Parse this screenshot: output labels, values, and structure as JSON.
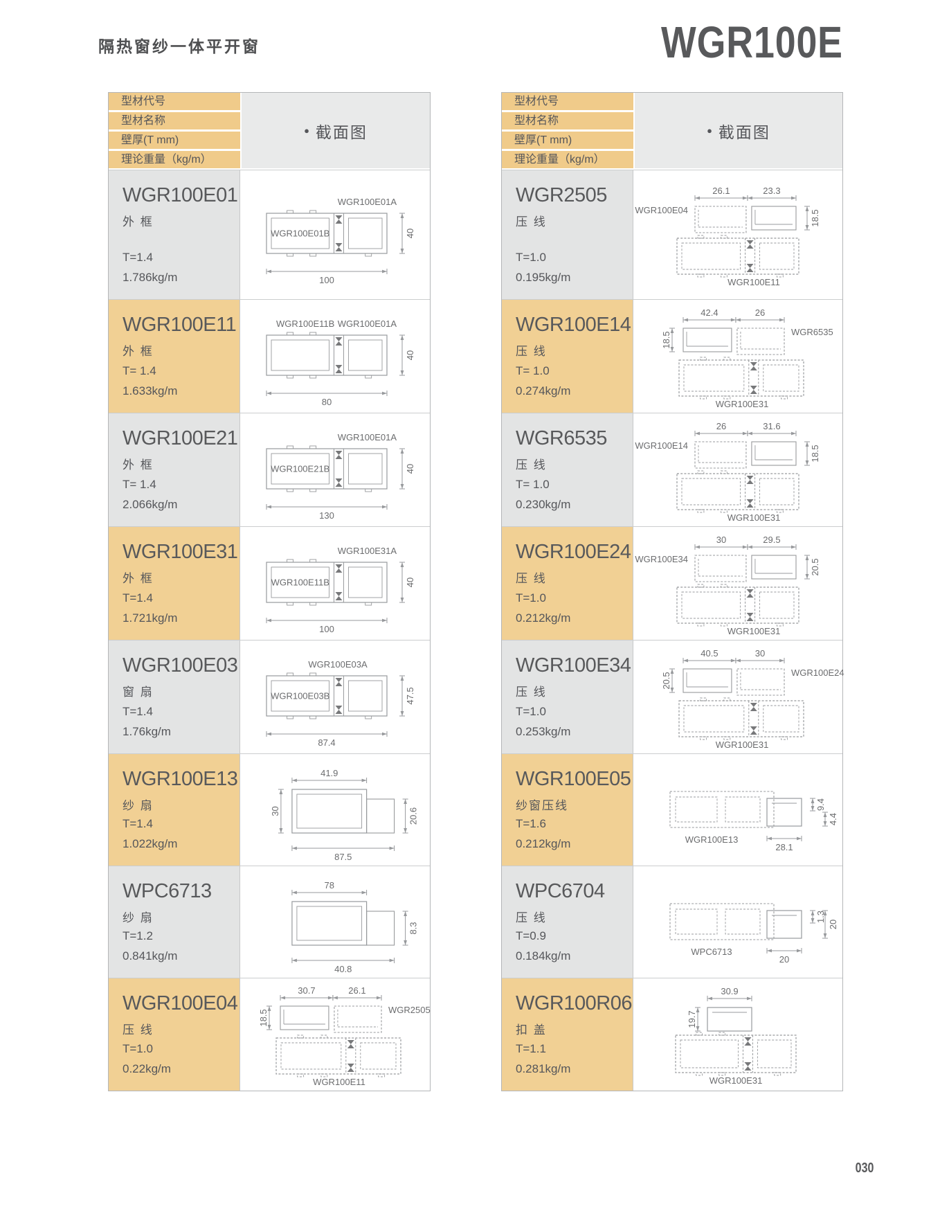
{
  "page": {
    "subtitle": "隔热窗纱一体平开窗",
    "series": "WGR100E",
    "page_number": "030"
  },
  "section": {
    "bullet": "●",
    "title": "截面图"
  },
  "table_header": [
    "型材代号",
    "型材名称",
    "壁厚(T mm)",
    "理论重量（kg/m）"
  ],
  "colors": {
    "header_yellow": "#f0cb8a",
    "row_yellow": "#f1d094",
    "row_gray": "#e3e4e4",
    "section_header_gray": "#e9eaea",
    "text_dark": "#58595b",
    "drawing_line": "#97999c"
  },
  "left_rows": [
    {
      "code": "WGR100E01",
      "name": "外 框",
      "thickness": "T=1.4",
      "weight": "1.786kg/m",
      "diagram": {
        "variant": "frame",
        "labels": {
          "topRight": "WGR100E01A",
          "inside": "WGR100E01B"
        },
        "dims": {
          "right": "40",
          "bottom": "100"
        }
      }
    },
    {
      "code": "WGR100E11",
      "name": "外 框",
      "thickness": "T= 1.4",
      "weight": "1.633kg/m",
      "diagram": {
        "variant": "frame",
        "labels": {
          "topLeft": "WGR100E11B",
          "topRight": "WGR100E01A"
        },
        "dims": {
          "right": "40",
          "bottom": "80"
        }
      }
    },
    {
      "code": "WGR100E21",
      "name": "外 框",
      "thickness": "T= 1.4",
      "weight": "2.066kg/m",
      "diagram": {
        "variant": "frame",
        "labels": {
          "topRight": "WGR100E01A",
          "inside": "WGR100E21B"
        },
        "dims": {
          "right": "40",
          "bottom": "130"
        }
      }
    },
    {
      "code": "WGR100E31",
      "name": "外 框",
      "thickness": "T=1.4",
      "weight": "1.721kg/m",
      "diagram": {
        "variant": "frame",
        "labels": {
          "topRight": "WGR100E31A",
          "inside": "WGR100E11B"
        },
        "dims": {
          "right": "40",
          "bottom": "100"
        }
      }
    },
    {
      "code": "WGR100E03",
      "name": "窗 扇",
      "thickness": "T=1.4",
      "weight": "1.76kg/m",
      "diagram": {
        "variant": "frame",
        "labels": {
          "topCenter": "WGR100E03A",
          "inside": "WGR100E03B"
        },
        "dims": {
          "right": "47.5",
          "bottom": "87.4"
        }
      }
    },
    {
      "code": "WGR100E13",
      "name": "纱 扇",
      "thickness": "T=1.4",
      "weight": "1.022kg/m",
      "diagram": {
        "variant": "solid",
        "labels": {},
        "dims": {
          "top": "41.9",
          "left": "30",
          "rightSmall": "20.6",
          "bottom": "87.5"
        }
      }
    },
    {
      "code": "WPC6713",
      "name": "纱 扇",
      "thickness": "T=1.2",
      "weight": "0.841kg/m",
      "diagram": {
        "variant": "solid",
        "labels": {},
        "dims": {
          "top": "78",
          "rightSmall": "8.3",
          "bottom": "40.8"
        }
      }
    },
    {
      "code": "WGR100E04",
      "name": "压 线",
      "thickness": "T=1.0",
      "weight": "0.22kg/m",
      "diagram": {
        "variant": "bead-left",
        "labels": {
          "right": "WGR2505",
          "bottom": "WGR100E11"
        },
        "dims": {
          "topLeft": "30.7",
          "topRight": "26.1",
          "left": "18.5"
        }
      }
    }
  ],
  "right_rows": [
    {
      "code": "WGR2505",
      "name": "压 线",
      "thickness": "T=1.0",
      "weight": "0.195kg/m",
      "diagram": {
        "variant": "bead-right",
        "labels": {
          "left": "WGR100E04",
          "bottom": "WGR100E11"
        },
        "dims": {
          "topLeft": "26.1",
          "topRight": "23.3",
          "rightSmall": "18.5"
        }
      }
    },
    {
      "code": "WGR100E14",
      "name": "压 线",
      "thickness": "T= 1.0",
      "weight": "0.274kg/m",
      "diagram": {
        "variant": "bead-left",
        "labels": {
          "right": "WGR6535",
          "bottom": "WGR100E31"
        },
        "dims": {
          "topLeft": "42.4",
          "topRight": "26",
          "left": "18.5"
        }
      }
    },
    {
      "code": "WGR6535",
      "name": "压 线",
      "thickness": "T= 1.0",
      "weight": "0.230kg/m",
      "diagram": {
        "variant": "bead-right",
        "labels": {
          "left": "WGR100E14",
          "bottom": "WGR100E31"
        },
        "dims": {
          "topLeft": "26",
          "topRight": "31.6",
          "rightSmall": "18.5"
        }
      }
    },
    {
      "code": "WGR100E24",
      "name": "压 线",
      "thickness": "T=1.0",
      "weight": "0.212kg/m",
      "diagram": {
        "variant": "bead-right",
        "labels": {
          "left": "WGR100E34",
          "bottom": "WGR100E31"
        },
        "dims": {
          "topLeft": "30",
          "topRight": "29.5",
          "rightSmall": "20.5"
        }
      }
    },
    {
      "code": "WGR100E34",
      "name": "压 线",
      "thickness": "T=1.0",
      "weight": "0.253kg/m",
      "diagram": {
        "variant": "bead-left",
        "labels": {
          "right": "WGR100E24",
          "bottom": "WGR100E31"
        },
        "dims": {
          "topLeft": "40.5",
          "topRight": "30",
          "left": "20.5"
        }
      }
    },
    {
      "code": "WGR100E05",
      "name": "纱窗压线",
      "thickness": "T=1.6",
      "weight": "0.212kg/m",
      "diagram": {
        "variant": "bead-overlay",
        "labels": {
          "bottomLeft": "WGR100E13"
        },
        "dims": {
          "rightSmall": "9.4",
          "rightSmall2": "4.4",
          "bottomRight": "28.1"
        }
      }
    },
    {
      "code": "WPC6704",
      "name": "压 线",
      "thickness": "T=0.9",
      "weight": "0.184kg/m",
      "diagram": {
        "variant": "bead-overlay",
        "labels": {
          "bottomLeft": "WPC6713"
        },
        "dims": {
          "rightSmall": "1.3",
          "right": "20",
          "bottomRight": "20"
        }
      }
    },
    {
      "code": "WGR100R06",
      "name": "扣 盖",
      "thickness": "T=1.1",
      "weight": "0.281kg/m",
      "diagram": {
        "variant": "bead-top",
        "labels": {
          "bottom": "WGR100E31"
        },
        "dims": {
          "top": "30.9",
          "left": "19.7"
        }
      }
    }
  ]
}
